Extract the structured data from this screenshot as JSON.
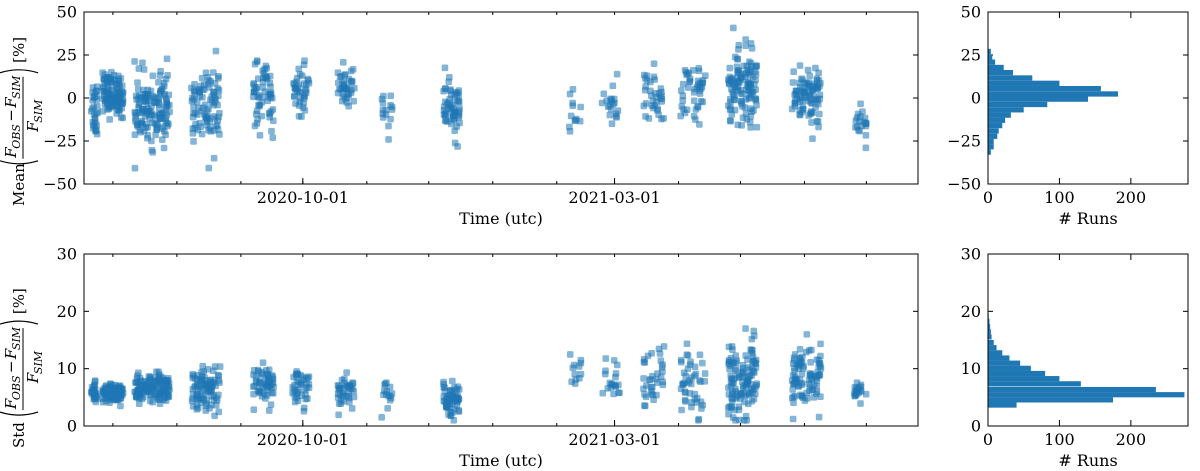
{
  "colors": {
    "marker": "#1f77b4",
    "axis": "#000000"
  },
  "chart_data": [
    {
      "type": "scatter",
      "panel": "top-left",
      "xlabel": "Time (utc)",
      "ylabel_prefix": "Mean",
      "ylabel_suffix": "[%]",
      "x_ticks": [
        "2020-10-01",
        "2021-03-01"
      ],
      "xlim": [
        "2020-06-17",
        "2021-07-26"
      ],
      "ylim": [
        -50,
        50
      ],
      "y_ticks": [
        -50,
        -25,
        0,
        25,
        50
      ],
      "grid": false,
      "clusters": [
        {
          "x": "2020-06-22",
          "width_days": 3,
          "center": -5,
          "spread": 9,
          "n": 30
        },
        {
          "x": "2020-07-01",
          "width_days": 10,
          "center": 2,
          "spread": 6,
          "n": 110
        },
        {
          "x": "2020-07-20",
          "width_days": 17,
          "center": -6,
          "spread": 10,
          "n": 140
        },
        {
          "x": "2020-08-15",
          "width_days": 14,
          "center": -6,
          "spread": 12,
          "n": 90
        },
        {
          "x": "2020-09-12",
          "width_days": 10,
          "center": 0,
          "spread": 9,
          "n": 60
        },
        {
          "x": "2020-09-30",
          "width_days": 8,
          "center": 4,
          "spread": 8,
          "n": 40
        },
        {
          "x": "2020-10-22",
          "width_days": 8,
          "center": 6,
          "spread": 7,
          "n": 40
        },
        {
          "x": "2020-11-11",
          "width_days": 6,
          "center": -7,
          "spread": 6,
          "n": 15
        },
        {
          "x": "2020-12-12",
          "width_days": 8,
          "center": -7,
          "spread": 8,
          "n": 60
        },
        {
          "x": "2021-02-10",
          "width_days": 6,
          "center": -6,
          "spread": 7,
          "n": 12
        },
        {
          "x": "2021-02-27",
          "width_days": 9,
          "center": -3,
          "spread": 7,
          "n": 20
        },
        {
          "x": "2021-03-20",
          "width_days": 10,
          "center": 0,
          "spread": 8,
          "n": 35
        },
        {
          "x": "2021-04-08",
          "width_days": 12,
          "center": 4,
          "spread": 8,
          "n": 45
        },
        {
          "x": "2021-05-02",
          "width_days": 14,
          "center": 6,
          "spread": 11,
          "n": 120
        },
        {
          "x": "2021-06-02",
          "width_days": 14,
          "center": 2,
          "spread": 9,
          "n": 90
        },
        {
          "x": "2021-06-28",
          "width_days": 6,
          "center": -15,
          "spread": 7,
          "n": 20
        }
      ]
    },
    {
      "type": "bar",
      "orientation": "horizontal",
      "panel": "top-right",
      "xlabel": "# Runs",
      "xlim": [
        0,
        280
      ],
      "x_ticks": [
        0,
        100,
        200
      ],
      "ylim": [
        -50,
        50
      ],
      "y_ticks": [
        -50,
        -25,
        0,
        25,
        50
      ],
      "bin_width": 3.08,
      "bins": [
        {
          "y": -33,
          "count": 4
        },
        {
          "y": -29.9,
          "count": 8
        },
        {
          "y": -26.9,
          "count": 8
        },
        {
          "y": -23.8,
          "count": 13
        },
        {
          "y": -20.7,
          "count": 15
        },
        {
          "y": -17.6,
          "count": 20
        },
        {
          "y": -14.5,
          "count": 24
        },
        {
          "y": -11.5,
          "count": 32
        },
        {
          "y": -8.4,
          "count": 50
        },
        {
          "y": -5.3,
          "count": 83
        },
        {
          "y": -2.2,
          "count": 140
        },
        {
          "y": 0.8,
          "count": 182
        },
        {
          "y": 3.9,
          "count": 158
        },
        {
          "y": 7,
          "count": 100
        },
        {
          "y": 10.1,
          "count": 62
        },
        {
          "y": 13.2,
          "count": 35
        },
        {
          "y": 16.2,
          "count": 22
        },
        {
          "y": 19.3,
          "count": 10
        },
        {
          "y": 22.4,
          "count": 6
        },
        {
          "y": 25.5,
          "count": 4
        }
      ]
    },
    {
      "type": "scatter",
      "panel": "bottom-left",
      "xlabel": "Time (utc)",
      "ylabel_prefix": "Std",
      "ylabel_suffix": "[%]",
      "x_ticks": [
        "2020-10-01",
        "2021-03-01"
      ],
      "xlim": [
        "2020-06-17",
        "2021-07-26"
      ],
      "ylim": [
        0,
        30
      ],
      "y_ticks": [
        0,
        10,
        20,
        30
      ],
      "grid": false,
      "clusters": [
        {
          "x": "2020-06-22",
          "width_days": 3,
          "center": 6,
          "spread": 0.8,
          "n": 30
        },
        {
          "x": "2020-07-01",
          "width_days": 10,
          "center": 5.6,
          "spread": 0.8,
          "n": 110
        },
        {
          "x": "2020-07-20",
          "width_days": 17,
          "center": 6.5,
          "spread": 1.3,
          "n": 140
        },
        {
          "x": "2020-08-15",
          "width_days": 14,
          "center": 6.5,
          "spread": 1.8,
          "n": 90
        },
        {
          "x": "2020-09-12",
          "width_days": 10,
          "center": 7,
          "spread": 1.8,
          "n": 60
        },
        {
          "x": "2020-09-30",
          "width_days": 8,
          "center": 6.5,
          "spread": 1.5,
          "n": 40
        },
        {
          "x": "2020-10-22",
          "width_days": 8,
          "center": 6.2,
          "spread": 1.5,
          "n": 40
        },
        {
          "x": "2020-11-11",
          "width_days": 6,
          "center": 5.5,
          "spread": 1.2,
          "n": 15
        },
        {
          "x": "2020-12-12",
          "width_days": 8,
          "center": 5,
          "spread": 1.5,
          "n": 60
        },
        {
          "x": "2021-02-10",
          "width_days": 6,
          "center": 9,
          "spread": 1.5,
          "n": 12
        },
        {
          "x": "2021-02-27",
          "width_days": 9,
          "center": 8,
          "spread": 2,
          "n": 20
        },
        {
          "x": "2021-03-20",
          "width_days": 10,
          "center": 7.5,
          "spread": 3.2,
          "n": 35
        },
        {
          "x": "2021-04-08",
          "width_days": 12,
          "center": 8,
          "spread": 3.2,
          "n": 45
        },
        {
          "x": "2021-05-02",
          "width_days": 14,
          "center": 7.5,
          "spread": 3.5,
          "n": 120
        },
        {
          "x": "2021-06-02",
          "width_days": 14,
          "center": 8.5,
          "spread": 3,
          "n": 90
        },
        {
          "x": "2021-06-28",
          "width_days": 6,
          "center": 6,
          "spread": 1,
          "n": 20
        }
      ]
    },
    {
      "type": "bar",
      "orientation": "horizontal",
      "panel": "bottom-right",
      "xlabel": "# Runs",
      "xlim": [
        0,
        280
      ],
      "x_ticks": [
        0,
        100,
        200
      ],
      "ylim": [
        0,
        30
      ],
      "y_ticks": [
        0,
        10,
        20,
        30
      ],
      "bin_width": 0.91,
      "bins": [
        {
          "y": 3.2,
          "count": 40
        },
        {
          "y": 4.1,
          "count": 175
        },
        {
          "y": 5,
          "count": 275
        },
        {
          "y": 5.9,
          "count": 235
        },
        {
          "y": 6.9,
          "count": 130
        },
        {
          "y": 7.8,
          "count": 100
        },
        {
          "y": 8.7,
          "count": 80
        },
        {
          "y": 9.6,
          "count": 60
        },
        {
          "y": 10.5,
          "count": 45
        },
        {
          "y": 11.4,
          "count": 30
        },
        {
          "y": 12.3,
          "count": 20
        },
        {
          "y": 13.2,
          "count": 12
        },
        {
          "y": 14.1,
          "count": 8
        },
        {
          "y": 15.1,
          "count": 5
        },
        {
          "y": 16,
          "count": 4
        },
        {
          "y": 16.9,
          "count": 3
        },
        {
          "y": 17.8,
          "count": 2
        },
        {
          "y": 18.7,
          "count": 1
        }
      ]
    }
  ]
}
